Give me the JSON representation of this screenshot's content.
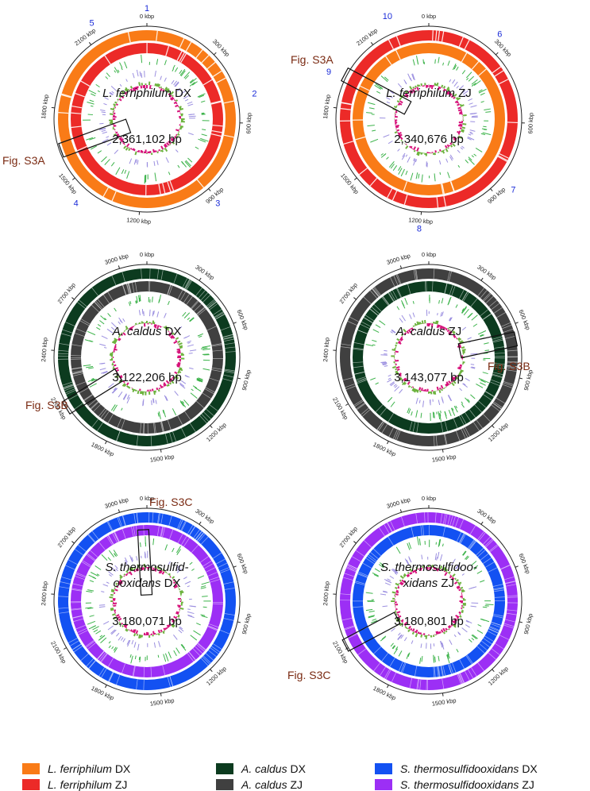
{
  "panels": [
    {
      "species": "L. ferriphilum",
      "species_lines": null,
      "strain": "DX",
      "size": "2,361,102 bp",
      "outer_color": "#f97b17",
      "inner_color": "#ec2a28",
      "ticks": [
        "0 kbp",
        "300 kbp",
        "600 kbp",
        "900 kbp",
        "1200 kbp",
        "1500 kbp",
        "1800 kbp",
        "2100 kbp"
      ],
      "region_numbers": [
        "1",
        "2",
        "3",
        "4",
        "5"
      ],
      "callout": "Fig. S3A"
    },
    {
      "species": "L. ferriphilum",
      "species_lines": null,
      "strain": "ZJ",
      "size": "2,340,676 bp",
      "outer_color": "#ec2a28",
      "inner_color": "#f97b17",
      "ticks": [
        "0 kbp",
        "300 kbp",
        "600 kbp",
        "900 kbp",
        "1200 kbp",
        "1500 kbp",
        "1800 kbp",
        "2100 kbp"
      ],
      "region_numbers": [
        "6",
        "7",
        "8",
        "9",
        "10"
      ],
      "callout": "Fig. S3A"
    },
    {
      "species": "A. caldus",
      "species_lines": null,
      "strain": "DX",
      "size": "3,122,206 bp",
      "outer_color": "#0c3b1f",
      "inner_color": "#404040",
      "ticks": [
        "0 kbp",
        "300 kbp",
        "600 kbp",
        "900 kbp",
        "1200 kbp",
        "1500 kbp",
        "1800 kbp",
        "2100 kbp",
        "2400 kbp",
        "2700 kbp",
        "3000 kbp"
      ],
      "region_numbers": [],
      "callout": "Fig. S3B"
    },
    {
      "species": "A. caldus",
      "species_lines": null,
      "strain": "ZJ",
      "size": "3,143,077 bp",
      "outer_color": "#404040",
      "inner_color": "#0c3b1f",
      "ticks": [
        "0 kbp",
        "300 kbp",
        "600 kbp",
        "900 kbp",
        "1200 kbp",
        "1500 kbp",
        "1800 kbp",
        "2100 kbp",
        "2400 kbp",
        "2700 kbp",
        "3000 kbp"
      ],
      "region_numbers": [],
      "callout": "Fig. S3B"
    },
    {
      "species": "S. thermosulfid-ooxidans",
      "species_lines": [
        "S. thermosulfid-",
        "ooxidans"
      ],
      "strain": "DX",
      "size": "3,180,071 bp",
      "outer_color": "#1351f2",
      "inner_color": "#9c2ff5",
      "ticks": [
        "0 kbp",
        "300 kbp",
        "600 kbp",
        "900 kbp",
        "1200 kbp",
        "1500 kbp",
        "1800 kbp",
        "2100 kbp",
        "2400 kbp",
        "2700 kbp",
        "3000 kbp"
      ],
      "region_numbers": [],
      "callout": "Fig. S3C"
    },
    {
      "species": "S. thermosulfidoo-xidans",
      "species_lines": [
        "S. thermosulfidoo-",
        "xidans"
      ],
      "strain": "ZJ",
      "size": "3,180,801 bp",
      "outer_color": "#9c2ff5",
      "inner_color": "#1351f2",
      "ticks": [
        "0 kbp",
        "300 kbp",
        "600 kbp",
        "900 kbp",
        "1200 kbp",
        "1500 kbp",
        "1800 kbp",
        "2100 kbp",
        "2400 kbp",
        "2700 kbp",
        "3000 kbp"
      ],
      "region_numbers": [],
      "callout": "Fig. S3C"
    }
  ],
  "legend": [
    {
      "species": "L. ferriphilum",
      "strain": "DX",
      "color": "#f97b17"
    },
    {
      "species": "A. caldus",
      "strain": "DX",
      "color": "#0c3b1f"
    },
    {
      "species": "S. thermosulfidooxidans",
      "strain": "DX",
      "color": "#1351f2"
    },
    {
      "species": "L. ferriphilum",
      "strain": "ZJ",
      "color": "#ec2a28"
    },
    {
      "species": "A. caldus",
      "strain": "ZJ",
      "color": "#404040"
    },
    {
      "species": "S. thermosulfidooxidans",
      "strain": "ZJ",
      "color": "#9c2ff5"
    }
  ],
  "colors": {
    "gc_positive": "#6db33f",
    "gc_negative": "#d6127a",
    "feature_green": "#3cb34a",
    "feature_violet": "#9b8fe0",
    "region_number": "#1a2bd8",
    "callout_text": "#7a2a12"
  }
}
